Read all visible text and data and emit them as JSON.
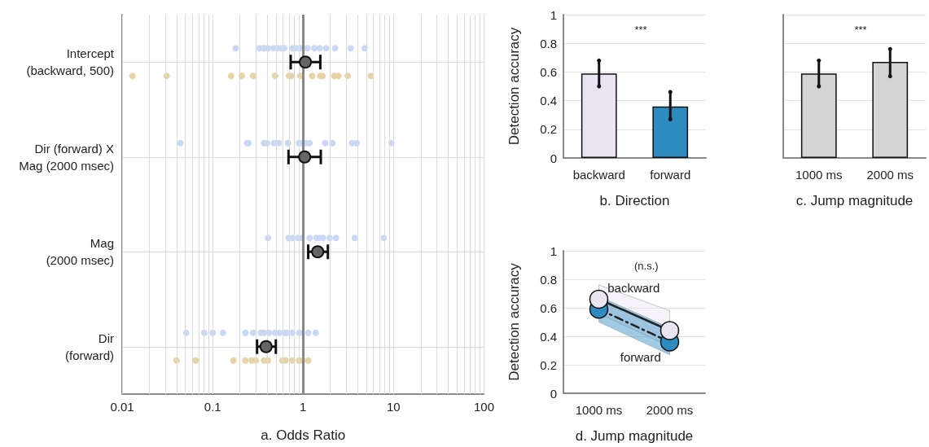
{
  "chart_data": [
    {
      "type": "scatter",
      "orientation": "horizontal",
      "xlabel": "a. Odds Ratio",
      "log": "x",
      "xlim": [
        0.01,
        100
      ],
      "xticks": [
        0.01,
        0.1,
        1,
        10,
        100
      ],
      "grid": true,
      "marker": "circle",
      "categories": [
        "Intercept\n(backward, 500)",
        "Dir (forward) X\nMag (2000 msec)",
        "Mag\n(2000 msec)",
        "Dir\n(forward)"
      ],
      "ref_lines": [
        {
          "axis": "x",
          "value": 1,
          "color": "#888888"
        }
      ],
      "series": [
        {
          "color": "#666666",
          "values": [
            1.06,
            1.04,
            1.45,
            0.39
          ],
          "errors": [
            [
              0.73,
              1.55
            ],
            [
              0.69,
              1.57
            ],
            [
              1.14,
              1.88
            ],
            [
              0.31,
              0.5
            ]
          ]
        },
        {
          "color": "#c9d9f5",
          "x": [
            "Intercept\n(backward, 500)",
            "Intercept\n(backward, 500)",
            "Intercept\n(backward, 500)",
            "Intercept\n(backward, 500)",
            "Intercept\n(backward, 500)",
            "Intercept\n(backward, 500)",
            "Intercept\n(backward, 500)",
            "Intercept\n(backward, 500)",
            "Intercept\n(backward, 500)",
            "Intercept\n(backward, 500)",
            "Intercept\n(backward, 500)",
            "Intercept\n(backward, 500)",
            "Intercept\n(backward, 500)",
            "Intercept\n(backward, 500)",
            "Intercept\n(backward, 500)",
            "Intercept\n(backward, 500)",
            "Intercept\n(backward, 500)",
            "Intercept\n(backward, 500)",
            "Intercept\n(backward, 500)",
            "Dir (forward) X\nMag (2000 msec)",
            "Dir (forward) X\nMag (2000 msec)",
            "Dir (forward) X\nMag (2000 msec)",
            "Dir (forward) X\nMag (2000 msec)",
            "Dir (forward) X\nMag (2000 msec)",
            "Dir (forward) X\nMag (2000 msec)",
            "Dir (forward) X\nMag (2000 msec)",
            "Dir (forward) X\nMag (2000 msec)",
            "Dir (forward) X\nMag (2000 msec)",
            "Dir (forward) X\nMag (2000 msec)",
            "Dir (forward) X\nMag (2000 msec)",
            "Dir (forward) X\nMag (2000 msec)",
            "Dir (forward) X\nMag (2000 msec)",
            "Dir (forward) X\nMag (2000 msec)",
            "Dir (forward) X\nMag (2000 msec)",
            "Dir (forward) X\nMag (2000 msec)",
            "Dir (forward) X\nMag (2000 msec)",
            "Mag\n(2000 msec)",
            "Mag\n(2000 msec)",
            "Mag\n(2000 msec)",
            "Mag\n(2000 msec)",
            "Mag\n(2000 msec)",
            "Mag\n(2000 msec)",
            "Mag\n(2000 msec)",
            "Mag\n(2000 msec)",
            "Mag\n(2000 msec)",
            "Mag\n(2000 msec)",
            "Mag\n(2000 msec)",
            "Mag\n(2000 msec)",
            "Mag\n(2000 msec)",
            "Dir\n(forward)",
            "Dir\n(forward)",
            "Dir\n(forward)",
            "Dir\n(forward)",
            "Dir\n(forward)",
            "Dir\n(forward)",
            "Dir\n(forward)",
            "Dir\n(forward)",
            "Dir\n(forward)",
            "Dir\n(forward)",
            "Dir\n(forward)",
            "Dir\n(forward)",
            "Dir\n(forward)",
            "Dir\n(forward)",
            "Dir\n(forward)",
            "Dir\n(forward)",
            "Dir\n(forward)"
          ],
          "values": [
            0.18,
            0.33,
            0.37,
            0.41,
            0.47,
            0.52,
            0.57,
            0.62,
            0.77,
            0.84,
            0.93,
            1.01,
            1.12,
            1.33,
            1.53,
            1.8,
            2.26,
            3.36,
            4.8,
            0.044,
            0.24,
            0.25,
            0.37,
            0.4,
            0.48,
            0.54,
            0.68,
            0.9,
            0.96,
            1.06,
            1.18,
            1.75,
            2.11,
            3.48,
            3.91,
            9.5,
            0.41,
            0.69,
            0.76,
            0.87,
            0.96,
            1.18,
            1.4,
            1.53,
            1.66,
            1.97,
            2.31,
            3.73,
            7.8,
            0.051,
            0.081,
            0.1,
            0.13,
            0.23,
            0.28,
            0.34,
            0.37,
            0.42,
            0.49,
            0.55,
            0.62,
            0.66,
            0.76,
            0.91,
            1.14,
            1.38
          ]
        },
        {
          "color": "#e6d3a6",
          "x": [
            "Intercept\n(backward, 500)",
            "Intercept\n(backward, 500)",
            "Intercept\n(backward, 500)",
            "Intercept\n(backward, 500)",
            "Intercept\n(backward, 500)",
            "Intercept\n(backward, 500)",
            "Intercept\n(backward, 500)",
            "Intercept\n(backward, 500)",
            "Intercept\n(backward, 500)",
            "Intercept\n(backward, 500)",
            "Intercept\n(backward, 500)",
            "Intercept\n(backward, 500)",
            "Intercept\n(backward, 500)",
            "Intercept\n(backward, 500)",
            "Intercept\n(backward, 500)",
            "Intercept\n(backward, 500)",
            "Dir\n(forward)",
            "Dir\n(forward)",
            "Dir\n(forward)",
            "Dir\n(forward)",
            "Dir\n(forward)",
            "Dir\n(forward)",
            "Dir\n(forward)",
            "Dir\n(forward)",
            "Dir\n(forward)",
            "Dir\n(forward)",
            "Dir\n(forward)",
            "Dir\n(forward)",
            "Dir\n(forward)",
            "Dir\n(forward)"
          ],
          "values": [
            0.013,
            0.031,
            0.16,
            0.21,
            0.28,
            0.49,
            0.7,
            0.74,
            0.93,
            1.26,
            1.55,
            1.64,
            2.21,
            2.45,
            3.12,
            5.6,
            0.04,
            0.065,
            0.17,
            0.23,
            0.27,
            0.3,
            0.37,
            0.41,
            0.59,
            0.64,
            0.76,
            0.9,
            0.99,
            1.14
          ]
        }
      ]
    },
    {
      "type": "bar",
      "xlabel": "b. Direction",
      "ylabel": "Detection accuracy",
      "categories": [
        "backward",
        "forward"
      ],
      "values": [
        0.59,
        0.36
      ],
      "colors": [
        "#ebe5f3",
        "#2e8bc0"
      ],
      "errors": [
        [
          0.5,
          0.68
        ],
        [
          0.27,
          0.46
        ]
      ],
      "ylim": [
        0,
        1
      ],
      "yticks": [
        0,
        0.2,
        0.4,
        0.6,
        0.8,
        1
      ],
      "grid": "y",
      "annotations": [
        "***"
      ]
    },
    {
      "type": "bar",
      "xlabel": "c. Jump magnitude",
      "categories": [
        "1000 ms",
        "2000 ms"
      ],
      "values": [
        0.59,
        0.67
      ],
      "color": "#d4d4d4",
      "errors": [
        [
          0.5,
          0.68
        ],
        [
          0.57,
          0.76
        ]
      ],
      "ylim": [
        0,
        1
      ],
      "yticks": [
        0,
        0.2,
        0.4,
        0.6,
        0.8,
        1
      ],
      "grid": "y",
      "tick_labels": "x",
      "annotations": [
        "***"
      ]
    },
    {
      "type": "line",
      "xlabel": "d. Jump magnitude",
      "ylabel": "Detection accuracy",
      "categories": [
        "1000 ms",
        "2000 ms"
      ],
      "ylim": [
        0,
        1
      ],
      "yticks": [
        0,
        0.2,
        0.4,
        0.6,
        0.8,
        1
      ],
      "grid": "y",
      "marker": "circle",
      "annotations": [
        "(n.s.)"
      ],
      "series": [
        {
          "name": "backward",
          "color": "#ebe5f3",
          "values": [
            0.66,
            0.44
          ],
          "lower": [
            0.56,
            0.33
          ],
          "upper": [
            0.76,
            0.58
          ],
          "line_style": "solid"
        },
        {
          "name": "forward",
          "color": "#2e8bc0",
          "values": [
            0.59,
            0.36
          ],
          "lower": [
            0.5,
            0.27
          ],
          "upper": [
            0.68,
            0.46
          ],
          "line_style": "dashed"
        }
      ]
    }
  ]
}
